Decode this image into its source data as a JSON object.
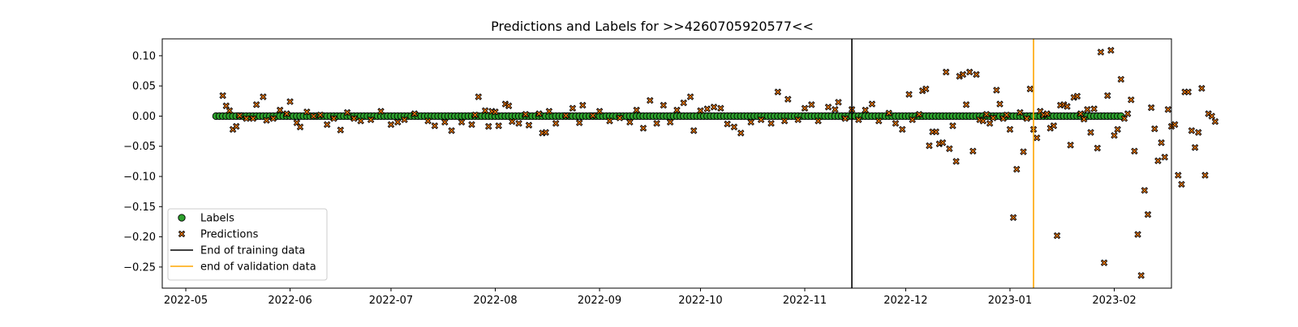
{
  "chart_data": {
    "type": "scatter",
    "title": "Predictions and Labels for >>4260705920577<<",
    "xlabel": "",
    "ylabel": "",
    "xlim": [
      "2022-04-24",
      "2023-02-18"
    ],
    "ylim": [
      -0.285,
      0.128
    ],
    "x_ticks": [
      "2022-05",
      "2022-06",
      "2022-07",
      "2022-08",
      "2022-09",
      "2022-10",
      "2022-11",
      "2022-12",
      "2023-01",
      "2023-02"
    ],
    "y_ticks": [
      0.1,
      0.05,
      0.0,
      -0.05,
      -0.1,
      -0.15,
      -0.2,
      -0.25
    ],
    "y_tick_labels": [
      "0.10",
      "0.05",
      "0.00",
      "−0.05",
      "−0.10",
      "−0.15",
      "−0.20",
      "−0.25"
    ],
    "grid": false,
    "legend_position": "lower-left",
    "series": [
      {
        "name": "Labels",
        "marker": "circle",
        "color": "#2ca02c",
        "edgecolor": "#000000",
        "x_start": "2022-05-10",
        "x_end": "2023-02-03",
        "x_step_days": 1,
        "constant_y": 0.0
      },
      {
        "name": "Predictions",
        "marker": "x",
        "color": "#ff7f0e",
        "edgecolor": "#000000",
        "points": [
          [
            "2022-05-12",
            0.034
          ],
          [
            "2022-05-13",
            0.017
          ],
          [
            "2022-05-14",
            0.009
          ],
          [
            "2022-05-15",
            -0.022
          ],
          [
            "2022-05-16",
            -0.017
          ],
          [
            "2022-05-17",
            0.001
          ],
          [
            "2022-05-19",
            -0.004
          ],
          [
            "2022-05-21",
            -0.004
          ],
          [
            "2022-05-22",
            0.019
          ],
          [
            "2022-05-24",
            0.032
          ],
          [
            "2022-05-25",
            -0.007
          ],
          [
            "2022-05-27",
            -0.004
          ],
          [
            "2022-05-29",
            0.01
          ],
          [
            "2022-05-31",
            0.004
          ],
          [
            "2022-06-01",
            0.024
          ],
          [
            "2022-06-03",
            -0.011
          ],
          [
            "2022-06-04",
            -0.018
          ],
          [
            "2022-06-06",
            0.007
          ],
          [
            "2022-06-08",
            0.0
          ],
          [
            "2022-06-10",
            0.002
          ],
          [
            "2022-06-12",
            -0.014
          ],
          [
            "2022-06-14",
            -0.004
          ],
          [
            "2022-06-16",
            -0.023
          ],
          [
            "2022-06-18",
            0.006
          ],
          [
            "2022-06-20",
            -0.004
          ],
          [
            "2022-06-22",
            -0.008
          ],
          [
            "2022-06-25",
            -0.006
          ],
          [
            "2022-06-28",
            0.008
          ],
          [
            "2022-07-01",
            -0.014
          ],
          [
            "2022-07-03",
            -0.01
          ],
          [
            "2022-07-05",
            -0.006
          ],
          [
            "2022-07-08",
            0.004
          ],
          [
            "2022-07-12",
            -0.008
          ],
          [
            "2022-07-14",
            -0.016
          ],
          [
            "2022-07-17",
            -0.01
          ],
          [
            "2022-07-19",
            -0.024
          ],
          [
            "2022-07-22",
            -0.01
          ],
          [
            "2022-07-25",
            -0.014
          ],
          [
            "2022-07-26",
            0.002
          ],
          [
            "2022-07-27",
            0.032
          ],
          [
            "2022-07-29",
            0.009
          ],
          [
            "2022-07-30",
            -0.017
          ],
          [
            "2022-07-31",
            0.008
          ],
          [
            "2022-08-01",
            0.007
          ],
          [
            "2022-08-02",
            -0.016
          ],
          [
            "2022-08-04",
            0.02
          ],
          [
            "2022-08-05",
            0.017
          ],
          [
            "2022-08-06",
            -0.009
          ],
          [
            "2022-08-08",
            -0.012
          ],
          [
            "2022-08-10",
            0.003
          ],
          [
            "2022-08-11",
            -0.015
          ],
          [
            "2022-08-14",
            0.004
          ],
          [
            "2022-08-15",
            -0.028
          ],
          [
            "2022-08-16",
            -0.027
          ],
          [
            "2022-08-17",
            0.008
          ],
          [
            "2022-08-19",
            -0.012
          ],
          [
            "2022-08-22",
            0.001
          ],
          [
            "2022-08-24",
            0.013
          ],
          [
            "2022-08-26",
            -0.011
          ],
          [
            "2022-08-27",
            0.018
          ],
          [
            "2022-08-30",
            0.001
          ],
          [
            "2022-09-01",
            0.008
          ],
          [
            "2022-09-04",
            -0.008
          ],
          [
            "2022-09-07",
            -0.003
          ],
          [
            "2022-09-10",
            -0.01
          ],
          [
            "2022-09-12",
            0.01
          ],
          [
            "2022-09-14",
            -0.02
          ],
          [
            "2022-09-16",
            0.026
          ],
          [
            "2022-09-18",
            -0.012
          ],
          [
            "2022-09-20",
            0.018
          ],
          [
            "2022-09-22",
            -0.01
          ],
          [
            "2022-09-24",
            0.01
          ],
          [
            "2022-09-26",
            0.022
          ],
          [
            "2022-09-28",
            0.032
          ],
          [
            "2022-09-29",
            -0.024
          ],
          [
            "2022-10-01",
            0.009
          ],
          [
            "2022-10-03",
            0.012
          ],
          [
            "2022-10-05",
            0.015
          ],
          [
            "2022-10-07",
            0.013
          ],
          [
            "2022-10-09",
            -0.013
          ],
          [
            "2022-10-11",
            -0.018
          ],
          [
            "2022-10-13",
            -0.028
          ],
          [
            "2022-10-16",
            -0.01
          ],
          [
            "2022-10-19",
            -0.006
          ],
          [
            "2022-10-22",
            -0.012
          ],
          [
            "2022-10-24",
            0.04
          ],
          [
            "2022-10-26",
            -0.008
          ],
          [
            "2022-10-27",
            0.028
          ],
          [
            "2022-10-30",
            -0.006
          ],
          [
            "2022-11-01",
            0.013
          ],
          [
            "2022-11-03",
            0.019
          ],
          [
            "2022-11-05",
            -0.008
          ],
          [
            "2022-11-08",
            0.015
          ],
          [
            "2022-11-10",
            0.011
          ],
          [
            "2022-11-11",
            0.023
          ],
          [
            "2022-11-13",
            -0.004
          ],
          [
            "2022-11-15",
            0.011
          ],
          [
            "2022-11-17",
            -0.006
          ],
          [
            "2022-11-19",
            0.01
          ],
          [
            "2022-11-21",
            0.02
          ],
          [
            "2022-11-23",
            -0.008
          ],
          [
            "2022-11-26",
            0.005
          ],
          [
            "2022-11-28",
            -0.012
          ],
          [
            "2022-11-30",
            -0.022
          ],
          [
            "2022-12-02",
            0.036
          ],
          [
            "2022-12-03",
            -0.006
          ],
          [
            "2022-12-05",
            0.003
          ],
          [
            "2022-12-06",
            0.042
          ],
          [
            "2022-12-07",
            0.045
          ],
          [
            "2022-12-08",
            -0.049
          ],
          [
            "2022-12-09",
            -0.026
          ],
          [
            "2022-12-10",
            -0.026
          ],
          [
            "2022-12-11",
            -0.046
          ],
          [
            "2022-12-12",
            -0.044
          ],
          [
            "2022-12-13",
            0.073
          ],
          [
            "2022-12-14",
            -0.054
          ],
          [
            "2022-12-15",
            -0.016
          ],
          [
            "2022-12-16",
            -0.075
          ],
          [
            "2022-12-17",
            0.066
          ],
          [
            "2022-12-18",
            0.069
          ],
          [
            "2022-12-19",
            0.019
          ],
          [
            "2022-12-20",
            0.073
          ],
          [
            "2022-12-21",
            -0.058
          ],
          [
            "2022-12-22",
            0.069
          ],
          [
            "2022-12-23",
            -0.006
          ],
          [
            "2022-12-24",
            -0.008
          ],
          [
            "2022-12-25",
            0.003
          ],
          [
            "2022-12-26",
            -0.012
          ],
          [
            "2022-12-27",
            -0.003
          ],
          [
            "2022-12-28",
            0.043
          ],
          [
            "2022-12-29",
            0.02
          ],
          [
            "2022-12-30",
            -0.004
          ],
          [
            "2022-12-31",
            0.002
          ],
          [
            "2023-01-01",
            -0.022
          ],
          [
            "2023-01-02",
            -0.168
          ],
          [
            "2023-01-03",
            -0.088
          ],
          [
            "2023-01-04",
            0.006
          ],
          [
            "2023-01-05",
            -0.059
          ],
          [
            "2023-01-06",
            -0.004
          ],
          [
            "2023-01-07",
            0.045
          ],
          [
            "2023-01-08",
            -0.022
          ],
          [
            "2023-01-09",
            -0.036
          ],
          [
            "2023-01-10",
            0.008
          ],
          [
            "2023-01-11",
            0.002
          ],
          [
            "2023-01-12",
            0.004
          ],
          [
            "2023-01-13",
            -0.02
          ],
          [
            "2023-01-14",
            -0.016
          ],
          [
            "2023-01-15",
            -0.198
          ],
          [
            "2023-01-16",
            0.018
          ],
          [
            "2023-01-17",
            0.019
          ],
          [
            "2023-01-18",
            0.016
          ],
          [
            "2023-01-19",
            -0.048
          ],
          [
            "2023-01-20",
            0.031
          ],
          [
            "2023-01-21",
            0.033
          ],
          [
            "2023-01-22",
            0.004
          ],
          [
            "2023-01-23",
            -0.005
          ],
          [
            "2023-01-24",
            0.011
          ],
          [
            "2023-01-25",
            -0.027
          ],
          [
            "2023-01-26",
            0.012
          ],
          [
            "2023-01-27",
            -0.053
          ],
          [
            "2023-01-28",
            0.106
          ],
          [
            "2023-01-29",
            -0.243
          ],
          [
            "2023-01-30",
            0.034
          ],
          [
            "2023-01-31",
            0.109
          ],
          [
            "2023-02-01",
            -0.032
          ],
          [
            "2023-02-02",
            -0.022
          ],
          [
            "2023-02-03",
            0.061
          ],
          [
            "2023-02-04",
            -0.004
          ],
          [
            "2023-02-05",
            0.004
          ],
          [
            "2023-02-06",
            0.027
          ],
          [
            "2023-02-07",
            -0.058
          ],
          [
            "2023-02-08",
            -0.196
          ],
          [
            "2023-02-09",
            -0.264
          ],
          [
            "2023-02-10",
            -0.123
          ],
          [
            "2023-02-11",
            -0.163
          ],
          [
            "2023-02-12",
            0.014
          ],
          [
            "2023-02-13",
            -0.021
          ],
          [
            "2023-02-14",
            -0.074
          ],
          [
            "2023-02-15",
            -0.044
          ],
          [
            "2023-02-16",
            -0.068
          ],
          [
            "2023-02-17",
            0.011
          ],
          [
            "2023-02-18",
            -0.017
          ],
          [
            "2023-02-19",
            -0.014
          ],
          [
            "2023-02-20",
            -0.098
          ],
          [
            "2023-02-21",
            -0.113
          ],
          [
            "2023-02-22",
            0.04
          ],
          [
            "2023-02-23",
            0.04
          ],
          [
            "2023-02-24",
            -0.024
          ],
          [
            "2023-02-25",
            -0.052
          ],
          [
            "2023-02-26",
            -0.027
          ],
          [
            "2023-02-27",
            0.046
          ],
          [
            "2023-02-28",
            -0.098
          ],
          [
            "2023-03-01",
            0.004
          ],
          [
            "2023-03-02",
            0.0
          ],
          [
            "2023-03-03",
            -0.009
          ]
        ]
      }
    ],
    "vlines": [
      {
        "name": "End of training data",
        "x": "2022-11-15",
        "color": "#000000"
      },
      {
        "name": "end of validation data",
        "x": "2023-01-08",
        "color": "#ffa500"
      }
    ],
    "legend": [
      {
        "label": "Labels",
        "kind": "circle",
        "color": "#2ca02c"
      },
      {
        "label": "Predictions",
        "kind": "x",
        "color": "#ff7f0e"
      },
      {
        "label": "End of training data",
        "kind": "line",
        "color": "#000000"
      },
      {
        "label": "end of validation data",
        "kind": "line",
        "color": "#ffa500"
      }
    ]
  }
}
